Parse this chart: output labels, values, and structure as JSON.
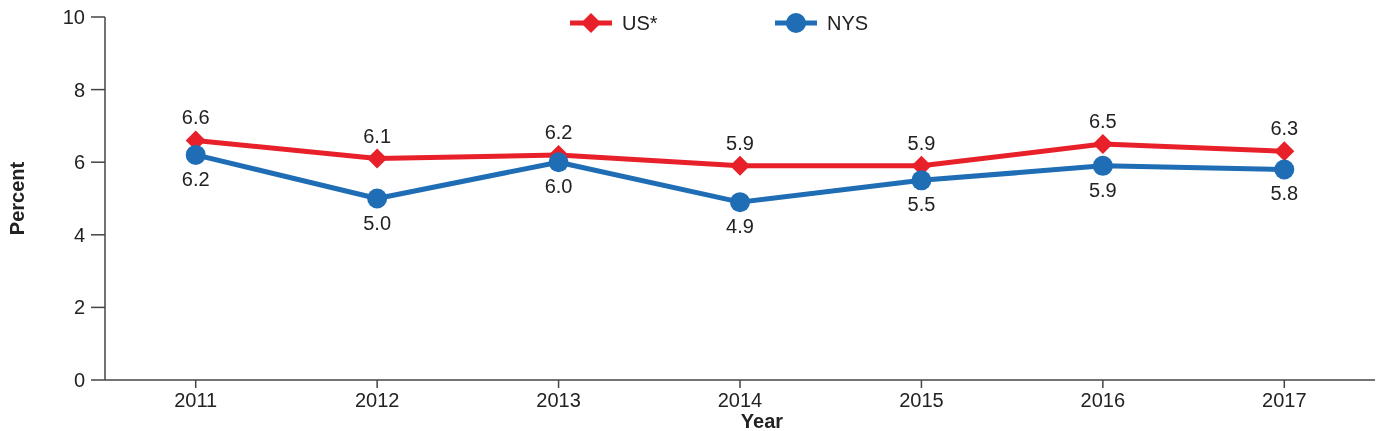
{
  "chart_data": {
    "type": "line",
    "xlabel": "Year",
    "ylabel": "Percent",
    "categories": [
      "2011",
      "2012",
      "2013",
      "2014",
      "2015",
      "2016",
      "2017"
    ],
    "series": [
      {
        "name": "US*",
        "color": "#e8202a",
        "marker": "diamond",
        "values": [
          6.6,
          6.1,
          6.2,
          5.9,
          5.9,
          6.5,
          6.3
        ],
        "value_labels": [
          "6.6",
          "6.1",
          "6.2",
          "5.9",
          "5.9",
          "6.5",
          "6.3"
        ]
      },
      {
        "name": "NYS",
        "color": "#1f6db5",
        "marker": "circle",
        "values": [
          6.2,
          5.0,
          6.0,
          4.9,
          5.5,
          5.9,
          5.8
        ],
        "value_labels": [
          "6.2",
          "5.0",
          "6.0",
          "4.9",
          "5.5",
          "5.9",
          "5.8"
        ]
      }
    ],
    "ylim": [
      0,
      10
    ],
    "yticks": [
      0,
      2,
      4,
      6,
      8,
      10
    ],
    "grid": false,
    "legend": "top"
  }
}
